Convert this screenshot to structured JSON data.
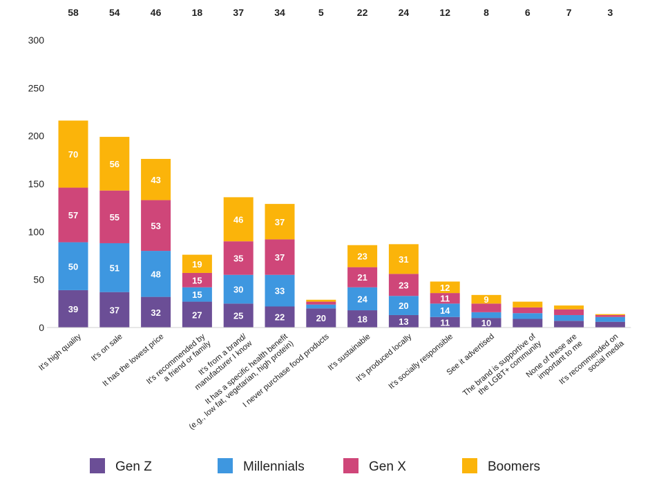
{
  "chart_data": {
    "type": "bar",
    "stacked": true,
    "title": "",
    "xlabel": "",
    "ylabel": "",
    "ylim": [
      0,
      300
    ],
    "yticks": [
      0,
      50,
      100,
      150,
      200,
      250,
      300
    ],
    "grid": false,
    "legend_position": "bottom",
    "categories": [
      [
        "It's high quality"
      ],
      [
        "It's on sale"
      ],
      [
        "It has the lowest price"
      ],
      [
        "It's recommended by",
        "a friend or family"
      ],
      [
        "It's from a brand/",
        "manufacturer I know"
      ],
      [
        "It has a specific health benefit",
        "(e.g., low fat, vegetarian, high protein)"
      ],
      [
        "I never purchase food products"
      ],
      [
        "It's sustainable"
      ],
      [
        "It's produced locally"
      ],
      [
        "It's socially responsible"
      ],
      [
        "See it advertised"
      ],
      [
        "The brand is supportive of",
        "the LGBT+ community"
      ],
      [
        "None of these are",
        "important to me"
      ],
      [
        "It's recommended on",
        "social media"
      ]
    ],
    "top_labels": [
      "58",
      "54",
      "46",
      "18",
      "37",
      "34",
      "5",
      "22",
      "24",
      "12",
      "8",
      "6",
      "7",
      "3"
    ],
    "series": [
      {
        "name": "Gen Z",
        "color": "#6b4e96",
        "values": [
          39,
          37,
          32,
          27,
          25,
          22,
          20,
          18,
          13,
          11,
          10,
          9,
          7,
          6
        ],
        "labels": [
          "39",
          "37",
          "32",
          "27",
          "25",
          "22",
          "20",
          "18",
          "13",
          "11",
          "10",
          "",
          "",
          ""
        ]
      },
      {
        "name": "Millennials",
        "color": "#3e97e0",
        "values": [
          50,
          51,
          48,
          15,
          30,
          33,
          4,
          24,
          20,
          14,
          6,
          6,
          6,
          5
        ],
        "labels": [
          "50",
          "51",
          "48",
          "15",
          "30",
          "33",
          "",
          "24",
          "20",
          "14",
          "",
          "",
          "",
          ""
        ]
      },
      {
        "name": "Gen X",
        "color": "#cf4679",
        "values": [
          57,
          55,
          53,
          15,
          35,
          37,
          3,
          21,
          23,
          11,
          9,
          6,
          6,
          2
        ],
        "labels": [
          "57",
          "55",
          "53",
          "15",
          "35",
          "37",
          "",
          "21",
          "23",
          "11",
          "",
          "",
          "",
          ""
        ]
      },
      {
        "name": "Boomers",
        "color": "#fbb40a",
        "values": [
          70,
          56,
          43,
          19,
          46,
          37,
          2,
          23,
          31,
          12,
          9,
          6,
          4,
          1
        ],
        "labels": [
          "70",
          "56",
          "43",
          "19",
          "46",
          "37",
          "",
          "23",
          "31",
          "12",
          "9",
          "",
          "",
          ""
        ]
      }
    ]
  }
}
